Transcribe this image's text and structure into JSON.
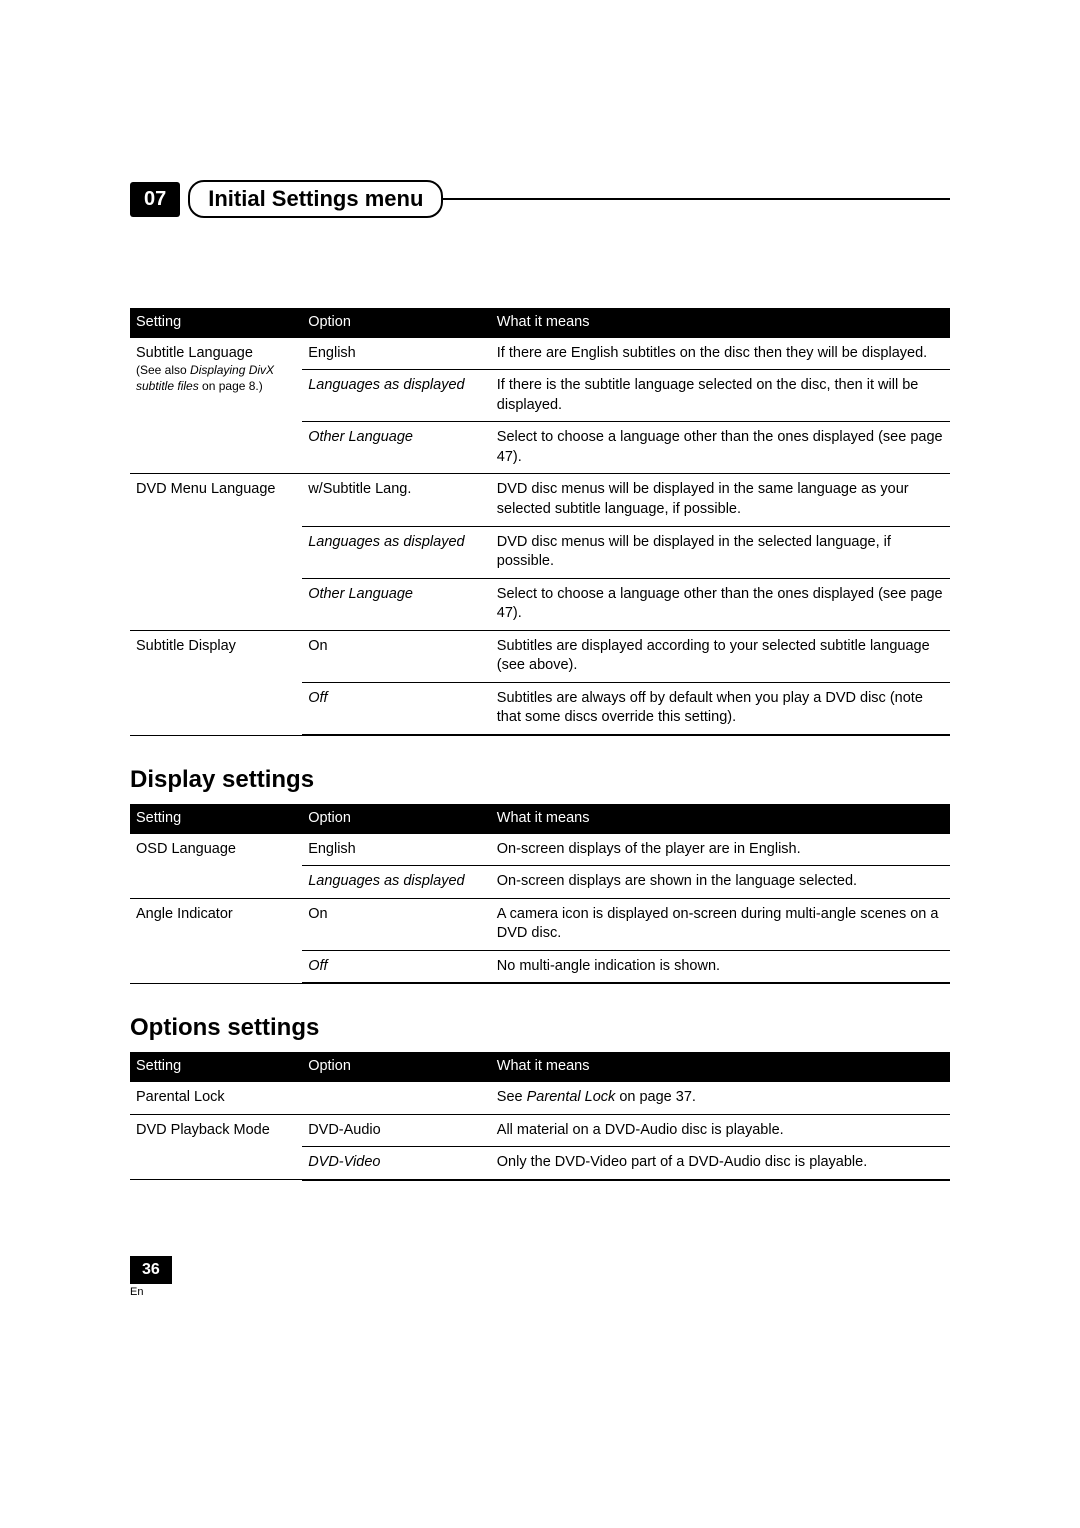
{
  "chapter": {
    "number": "07",
    "title": "Initial Settings menu"
  },
  "columns": {
    "setting": "Setting",
    "option": "Option",
    "meaning": "What it means"
  },
  "table1": {
    "rows": [
      {
        "setting_main": "Subtitle Language",
        "setting_note1": "(See also ",
        "setting_note1_italic": "Displaying DivX subtitle files",
        "setting_note1_end": " on page 8.)",
        "option": "English",
        "meaning": "If there are English subtitles on the disc then they will be displayed."
      },
      {
        "option_italic": "Languages as displayed",
        "meaning": "If there is the subtitle language selected on the disc, then it will be displayed."
      },
      {
        "option_italic": "Other Language",
        "meaning": "Select to choose a language other than the ones displayed (see page 47)."
      },
      {
        "setting_main": "DVD Menu Language",
        "option": "w/Subtitle Lang.",
        "meaning": "DVD disc menus will be displayed in the same language as your selected subtitle language, if possible."
      },
      {
        "option_italic": "Languages as displayed",
        "meaning": "DVD disc menus will be displayed in the selected language, if possible."
      },
      {
        "option_italic": "Other Language",
        "meaning": "Select to choose a language other than the ones displayed (see page 47)."
      },
      {
        "setting_main": "Subtitle Display",
        "option": "On",
        "meaning": "Subtitles are displayed according to your selected subtitle language (see above)."
      },
      {
        "option_italic": "Off",
        "meaning": "Subtitles are always off by default when you play a DVD disc (note that some discs override this setting)."
      }
    ]
  },
  "section2": {
    "title": "Display settings"
  },
  "table2": {
    "rows": [
      {
        "setting_main": "OSD Language",
        "option": "English",
        "meaning": "On-screen displays of the player are in English."
      },
      {
        "option_italic": "Languages as displayed",
        "meaning": "On-screen displays are shown in the language selected."
      },
      {
        "setting_main": "Angle Indicator",
        "option": "On",
        "meaning": "A camera icon is displayed on-screen during multi-angle scenes on a DVD disc."
      },
      {
        "option_italic": "Off",
        "meaning": "No multi-angle indication is shown."
      }
    ]
  },
  "section3": {
    "title": "Options settings"
  },
  "table3": {
    "rows": [
      {
        "setting_main": "Parental Lock",
        "meaning_pre": "See ",
        "meaning_italic": "Parental Lock",
        "meaning_post": " on page 37."
      },
      {
        "setting_main": "DVD Playback Mode",
        "option": "DVD-Audio",
        "meaning": "All material on a DVD-Audio disc is playable."
      },
      {
        "option_italic": "DVD-Video",
        "meaning": "Only the DVD-Video part of a DVD-Audio disc is playable."
      }
    ]
  },
  "footer": {
    "page": "36",
    "lang": "En"
  }
}
